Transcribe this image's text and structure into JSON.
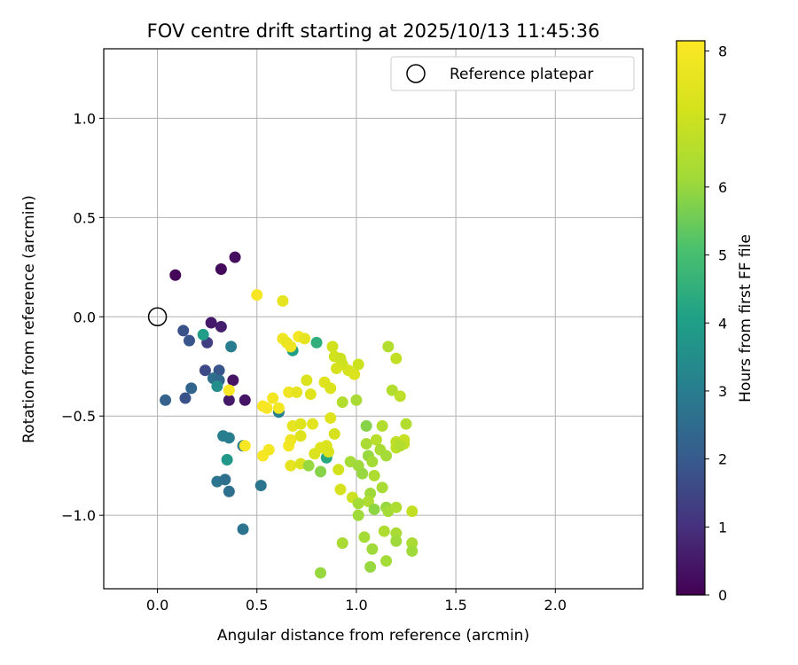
{
  "chart_data": {
    "type": "scatter",
    "title": "FOV centre drift starting at 2025/10/13 11:45:36",
    "xlabel": "Angular distance from reference (arcmin)",
    "ylabel": "Rotation from reference (arcmin)",
    "xlim": [
      -0.27,
      2.44
    ],
    "ylim": [
      -1.37,
      1.35
    ],
    "xticks": [
      0.0,
      0.5,
      1.0,
      1.5,
      2.0
    ],
    "yticks": [
      -1.0,
      -0.5,
      0.0,
      0.5,
      1.0
    ],
    "xtick_labels": [
      "0.0",
      "0.5",
      "1.0",
      "1.5",
      "2.0"
    ],
    "ytick_labels": [
      "−1.0",
      "−0.5",
      "0.0",
      "0.5",
      "1.0"
    ],
    "grid": true,
    "legend": {
      "label": "Reference platepar",
      "position": "top-right"
    },
    "reference_point": {
      "x": 0.0,
      "y": 0.0
    },
    "colorbar": {
      "label": "Hours from first FF file",
      "colormap": "viridis",
      "range": [
        0,
        8.15
      ],
      "ticks": [
        0,
        1,
        2,
        3,
        4,
        5,
        6,
        7,
        8
      ],
      "tick_labels": [
        "0",
        "1",
        "2",
        "3",
        "4",
        "5",
        "6",
        "7",
        "8"
      ]
    },
    "points": [
      {
        "x": 0.09,
        "y": 0.21,
        "c": 0.1
      },
      {
        "x": 0.32,
        "y": 0.24,
        "c": 0.2
      },
      {
        "x": 0.39,
        "y": 0.3,
        "c": 0.3
      },
      {
        "x": 0.27,
        "y": -0.03,
        "c": 0.5
      },
      {
        "x": 0.32,
        "y": -0.05,
        "c": 0.6
      },
      {
        "x": 0.38,
        "y": -0.32,
        "c": 0.4
      },
      {
        "x": 0.36,
        "y": -0.42,
        "c": 0.5
      },
      {
        "x": 0.44,
        "y": -0.42,
        "c": 0.4
      },
      {
        "x": 0.13,
        "y": -0.07,
        "c": 1.8
      },
      {
        "x": 0.16,
        "y": -0.12,
        "c": 1.9
      },
      {
        "x": 0.25,
        "y": -0.13,
        "c": 1.3
      },
      {
        "x": 0.24,
        "y": -0.27,
        "c": 1.6
      },
      {
        "x": 0.31,
        "y": -0.27,
        "c": 1.9
      },
      {
        "x": 0.28,
        "y": -0.31,
        "c": 2.6
      },
      {
        "x": 0.31,
        "y": -0.32,
        "c": 2.4
      },
      {
        "x": 0.17,
        "y": -0.36,
        "c": 2.3
      },
      {
        "x": 0.14,
        "y": -0.41,
        "c": 1.8
      },
      {
        "x": 0.04,
        "y": -0.42,
        "c": 2.2
      },
      {
        "x": 0.23,
        "y": -0.09,
        "c": 4.0
      },
      {
        "x": 0.37,
        "y": -0.15,
        "c": 3.0
      },
      {
        "x": 0.3,
        "y": -0.35,
        "c": 3.5
      },
      {
        "x": 0.33,
        "y": -0.6,
        "c": 3.0
      },
      {
        "x": 0.36,
        "y": -0.61,
        "c": 3.0
      },
      {
        "x": 0.35,
        "y": -0.72,
        "c": 3.8
      },
      {
        "x": 0.3,
        "y": -0.83,
        "c": 2.8
      },
      {
        "x": 0.34,
        "y": -0.82,
        "c": 2.6
      },
      {
        "x": 0.36,
        "y": -0.88,
        "c": 2.6
      },
      {
        "x": 0.43,
        "y": -0.65,
        "c": 2.9
      },
      {
        "x": 0.52,
        "y": -0.85,
        "c": 2.8
      },
      {
        "x": 0.43,
        "y": -1.07,
        "c": 2.7
      },
      {
        "x": 0.61,
        "y": -0.48,
        "c": 3.1
      },
      {
        "x": 0.68,
        "y": -0.17,
        "c": 4.0
      },
      {
        "x": 0.8,
        "y": -0.13,
        "c": 4.5
      },
      {
        "x": 0.85,
        "y": -0.71,
        "c": 4.3
      },
      {
        "x": 0.36,
        "y": -0.37,
        "c": 8.0
      },
      {
        "x": 0.44,
        "y": -0.65,
        "c": 8.0
      },
      {
        "x": 0.5,
        "y": 0.11,
        "c": 8.0
      },
      {
        "x": 0.63,
        "y": 0.08,
        "c": 7.6
      },
      {
        "x": 0.53,
        "y": -0.45,
        "c": 8.0
      },
      {
        "x": 0.55,
        "y": -0.46,
        "c": 8.0
      },
      {
        "x": 0.58,
        "y": -0.41,
        "c": 7.9
      },
      {
        "x": 0.61,
        "y": -0.46,
        "c": 7.9
      },
      {
        "x": 0.53,
        "y": -0.7,
        "c": 8.0
      },
      {
        "x": 0.56,
        "y": -0.67,
        "c": 7.9
      },
      {
        "x": 0.63,
        "y": -0.11,
        "c": 7.8
      },
      {
        "x": 0.65,
        "y": -0.13,
        "c": 7.7
      },
      {
        "x": 0.67,
        "y": -0.15,
        "c": 7.8
      },
      {
        "x": 0.71,
        "y": -0.1,
        "c": 7.9
      },
      {
        "x": 0.74,
        "y": -0.11,
        "c": 7.6
      },
      {
        "x": 0.66,
        "y": -0.38,
        "c": 7.8
      },
      {
        "x": 0.7,
        "y": -0.38,
        "c": 7.6
      },
      {
        "x": 0.75,
        "y": -0.32,
        "c": 7.3
      },
      {
        "x": 0.77,
        "y": -0.39,
        "c": 7.4
      },
      {
        "x": 0.66,
        "y": -0.65,
        "c": 7.9
      },
      {
        "x": 0.67,
        "y": -0.62,
        "c": 7.8
      },
      {
        "x": 0.68,
        "y": -0.55,
        "c": 7.6
      },
      {
        "x": 0.72,
        "y": -0.54,
        "c": 7.4
      },
      {
        "x": 0.72,
        "y": -0.6,
        "c": 7.4
      },
      {
        "x": 0.67,
        "y": -0.75,
        "c": 7.6
      },
      {
        "x": 0.72,
        "y": -0.74,
        "c": 7.3
      },
      {
        "x": 0.78,
        "y": -0.54,
        "c": 7.5
      },
      {
        "x": 0.79,
        "y": -0.69,
        "c": 7.3
      },
      {
        "x": 0.82,
        "y": -0.66,
        "c": 7.4
      },
      {
        "x": 0.84,
        "y": -0.33,
        "c": 7.4
      },
      {
        "x": 0.87,
        "y": -0.36,
        "c": 7.3
      },
      {
        "x": 0.87,
        "y": -0.51,
        "c": 7.4
      },
      {
        "x": 0.89,
        "y": -0.59,
        "c": 7.2
      },
      {
        "x": 0.85,
        "y": -0.65,
        "c": 7.3
      },
      {
        "x": 0.86,
        "y": -0.68,
        "c": 7.3
      },
      {
        "x": 0.88,
        "y": -0.15,
        "c": 7.1
      },
      {
        "x": 0.89,
        "y": -0.2,
        "c": 7.1
      },
      {
        "x": 0.92,
        "y": -0.21,
        "c": 7.0
      },
      {
        "x": 0.93,
        "y": -0.24,
        "c": 7.0
      },
      {
        "x": 0.9,
        "y": -0.26,
        "c": 7.2
      },
      {
        "x": 0.96,
        "y": -0.27,
        "c": 7.2
      },
      {
        "x": 0.99,
        "y": -0.29,
        "c": 7.3
      },
      {
        "x": 1.01,
        "y": -0.24,
        "c": 7.0
      },
      {
        "x": 0.93,
        "y": -0.43,
        "c": 6.5
      },
      {
        "x": 1.0,
        "y": -0.42,
        "c": 6.3
      },
      {
        "x": 0.91,
        "y": -0.77,
        "c": 7.1
      },
      {
        "x": 0.92,
        "y": -0.87,
        "c": 7.2
      },
      {
        "x": 0.98,
        "y": -0.91,
        "c": 7.0
      },
      {
        "x": 0.97,
        "y": -0.73,
        "c": 6.2
      },
      {
        "x": 0.76,
        "y": -0.75,
        "c": 6.0
      },
      {
        "x": 0.82,
        "y": -0.78,
        "c": 5.8
      },
      {
        "x": 1.01,
        "y": -0.75,
        "c": 6.1
      },
      {
        "x": 1.03,
        "y": -0.79,
        "c": 6.0
      },
      {
        "x": 1.05,
        "y": -0.64,
        "c": 6.3
      },
      {
        "x": 1.05,
        "y": -0.55,
        "c": 5.8
      },
      {
        "x": 1.06,
        "y": -0.7,
        "c": 6.0
      },
      {
        "x": 1.08,
        "y": -0.73,
        "c": 6.2
      },
      {
        "x": 1.1,
        "y": -0.62,
        "c": 6.6
      },
      {
        "x": 1.12,
        "y": -0.67,
        "c": 6.3
      },
      {
        "x": 1.13,
        "y": -0.55,
        "c": 6.5
      },
      {
        "x": 1.15,
        "y": -0.7,
        "c": 6.2
      },
      {
        "x": 1.09,
        "y": -0.8,
        "c": 6.4
      },
      {
        "x": 1.13,
        "y": -0.86,
        "c": 6.3
      },
      {
        "x": 1.07,
        "y": -0.89,
        "c": 6.1
      },
      {
        "x": 1.06,
        "y": -0.93,
        "c": 6.4
      },
      {
        "x": 1.01,
        "y": -0.94,
        "c": 6.2
      },
      {
        "x": 1.01,
        "y": -1.0,
        "c": 6.1
      },
      {
        "x": 1.09,
        "y": -0.97,
        "c": 5.9
      },
      {
        "x": 1.15,
        "y": -0.96,
        "c": 6.0
      },
      {
        "x": 1.16,
        "y": -0.98,
        "c": 6.2
      },
      {
        "x": 1.2,
        "y": -0.96,
        "c": 6.4
      },
      {
        "x": 1.04,
        "y": -1.11,
        "c": 6.2
      },
      {
        "x": 1.08,
        "y": -1.17,
        "c": 6.1
      },
      {
        "x": 0.93,
        "y": -1.14,
        "c": 6.3
      },
      {
        "x": 1.07,
        "y": -1.26,
        "c": 6.0
      },
      {
        "x": 1.15,
        "y": -1.23,
        "c": 6.2
      },
      {
        "x": 0.82,
        "y": -1.29,
        "c": 6.0
      },
      {
        "x": 1.14,
        "y": -1.08,
        "c": 6.4
      },
      {
        "x": 1.2,
        "y": -1.09,
        "c": 6.3
      },
      {
        "x": 1.2,
        "y": -1.13,
        "c": 6.1
      },
      {
        "x": 1.28,
        "y": -1.14,
        "c": 6.3
      },
      {
        "x": 1.28,
        "y": -1.18,
        "c": 6.1
      },
      {
        "x": 1.28,
        "y": -0.98,
        "c": 6.8
      },
      {
        "x": 1.16,
        "y": -0.15,
        "c": 6.5
      },
      {
        "x": 1.2,
        "y": -0.21,
        "c": 6.8
      },
      {
        "x": 1.18,
        "y": -0.37,
        "c": 6.5
      },
      {
        "x": 1.22,
        "y": -0.4,
        "c": 6.7
      },
      {
        "x": 1.25,
        "y": -0.54,
        "c": 6.5
      },
      {
        "x": 1.2,
        "y": -0.63,
        "c": 6.7
      },
      {
        "x": 1.22,
        "y": -0.64,
        "c": 6.6
      },
      {
        "x": 1.24,
        "y": -0.62,
        "c": 6.9
      },
      {
        "x": 1.24,
        "y": -0.64,
        "c": 6.8
      },
      {
        "x": 1.2,
        "y": -0.66,
        "c": 6.7
      },
      {
        "x": 1.22,
        "y": -0.65,
        "c": 6.5
      }
    ]
  }
}
